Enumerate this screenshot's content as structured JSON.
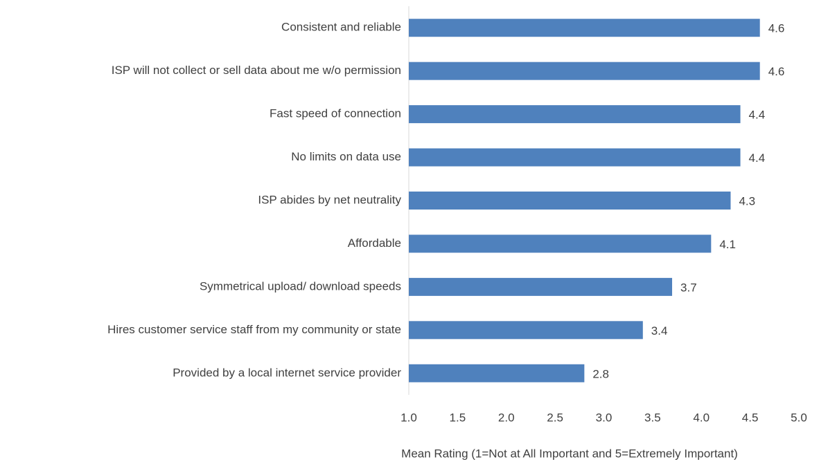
{
  "chart_data": {
    "type": "barh",
    "categories": [
      "Consistent and reliable",
      "ISP will not collect or sell data about me w/o permission",
      "Fast speed of connection",
      "No limits on data use",
      "ISP abides by net neutrality",
      "Affordable",
      "Symmetrical upload/ download speeds",
      "Hires customer service staff from my community or state",
      "Provided by a local internet service provider"
    ],
    "values": [
      4.6,
      4.6,
      4.4,
      4.4,
      4.3,
      4.1,
      3.7,
      3.4,
      2.8
    ],
    "color": "#4f81bd",
    "xlim": [
      1,
      5
    ],
    "xticks": [
      {
        "value": 1,
        "label": "1.0"
      },
      1.5,
      {
        "value": 2,
        "label": "2.0"
      },
      2.5,
      {
        "value": 3,
        "label": "3.0"
      },
      3.5,
      {
        "value": 4,
        "label": "4.0"
      },
      4.5,
      {
        "value": 5,
        "label": "5.0"
      }
    ],
    "xlabel": "Mean Rating (1=Not at All Important and 5=Extremely Important)",
    "grid": false
  }
}
